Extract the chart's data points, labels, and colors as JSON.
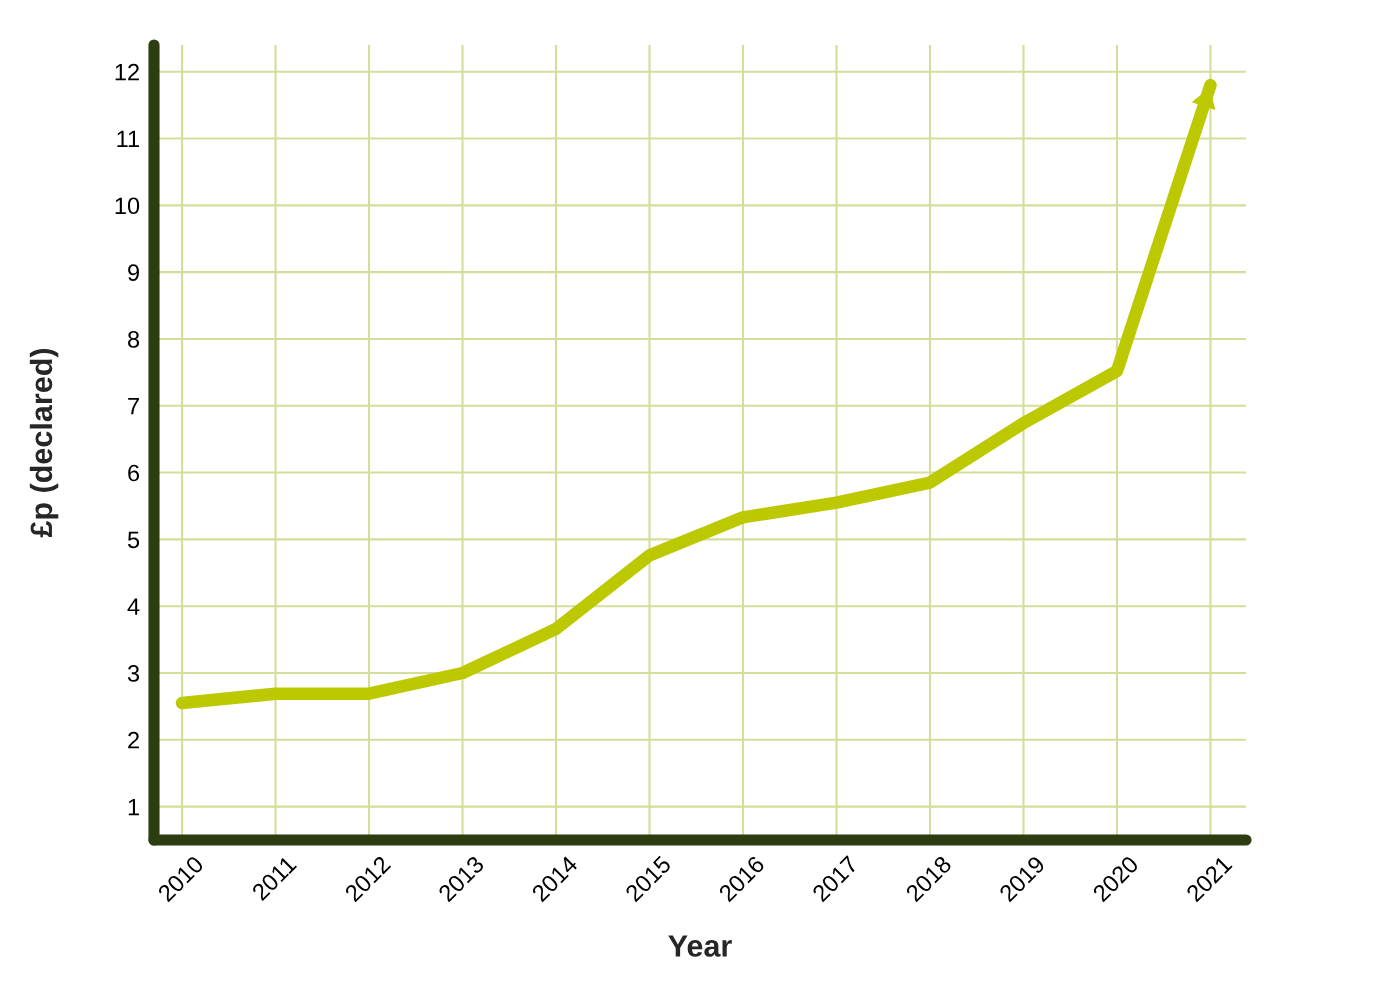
{
  "chart_data": {
    "type": "line",
    "xlabel": "Year",
    "ylabel": "£p (declared)",
    "categories": [
      "2010",
      "2011",
      "2012",
      "2013",
      "2014",
      "2015",
      "2016",
      "2017",
      "2018",
      "2019",
      "2020",
      "2021"
    ],
    "series": [
      {
        "color": "#bdc900",
        "values": [
          2.55,
          2.69,
          2.69,
          3.0,
          3.66,
          4.76,
          5.33,
          5.55,
          5.85,
          6.74,
          7.52,
          11.8
        ]
      }
    ],
    "ylim": [
      0.5,
      12.4
    ],
    "yticks": [
      1,
      2,
      3,
      4,
      5,
      6,
      7,
      8,
      9,
      10,
      11,
      12
    ],
    "grid": true,
    "marker": "none",
    "line_style": "solid"
  }
}
